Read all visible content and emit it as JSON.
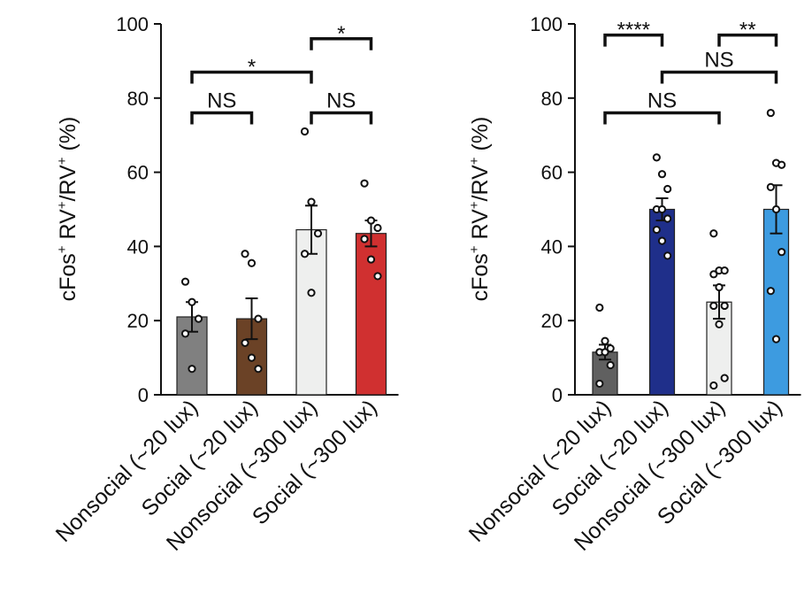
{
  "charts": [
    {
      "id": "left",
      "chart_data": {
        "type": "bar",
        "title": "",
        "xlabel": "",
        "ylabel": "cFos",
        "ylabel_parts": [
          "cFos",
          "+",
          " RV",
          "+",
          "/RV",
          "+",
          " (%)"
        ],
        "ylim": [
          0,
          100
        ],
        "yticks": [
          "0",
          "20",
          "40",
          "60",
          "80",
          "100"
        ],
        "categories": [
          "Nonsocial (~20 lux)",
          "Social (~20 lux)",
          "Nonsocial (~300 lux)",
          "Social (~300 lux)"
        ],
        "values": [
          21,
          20.5,
          44.5,
          43.5
        ],
        "errors": [
          4,
          5.5,
          6.5,
          3.5
        ],
        "colors": [
          "#808080",
          "#6b4226",
          "#eeefee",
          "#d03030"
        ],
        "points": [
          [
            30.5,
            25,
            20.5,
            16.5,
            7
          ],
          [
            38,
            35.5,
            20.5,
            14,
            10,
            7
          ],
          [
            71,
            52,
            43.5,
            38,
            27.5
          ],
          [
            57,
            47,
            45,
            42,
            36.5,
            32
          ]
        ],
        "comparisons": [
          {
            "from": 2,
            "to": 3,
            "y": 96,
            "label": "*"
          },
          {
            "from": 0,
            "to": 2,
            "y": 87,
            "label": "*"
          },
          {
            "from": 0,
            "to": 1,
            "y": 76,
            "label": "NS"
          },
          {
            "from": 2,
            "to": 3,
            "y": 76,
            "label": "NS"
          }
        ]
      }
    },
    {
      "id": "right",
      "chart_data": {
        "type": "bar",
        "title": "",
        "xlabel": "",
        "ylabel": "cFos",
        "ylabel_parts": [
          "cFos",
          "+",
          " RV",
          "+",
          "/RV",
          "+",
          " (%)"
        ],
        "ylim": [
          0,
          100
        ],
        "yticks": [
          "0",
          "20",
          "40",
          "60",
          "80",
          "100"
        ],
        "categories": [
          "Nonsocial (~20 lux)",
          "Social (~20 lux)",
          "Nonsocial (~300 lux)",
          "Social (~300 lux)"
        ],
        "values": [
          11.5,
          50,
          25,
          50
        ],
        "errors": [
          2,
          3,
          4.5,
          6.5
        ],
        "colors": [
          "#606060",
          "#1f2f8a",
          "#eeefee",
          "#3d9be0"
        ],
        "points": [
          [
            23.5,
            14.5,
            12.5,
            11.5,
            11.5,
            8,
            3
          ],
          [
            64,
            59.5,
            55.5,
            50,
            50,
            47.5,
            44.5,
            41.5,
            37.5
          ],
          [
            43.5,
            33.5,
            33.5,
            32.5,
            29,
            24,
            24,
            19,
            4.5,
            2.5
          ],
          [
            76,
            62.5,
            62,
            56,
            50,
            38.5,
            28,
            15
          ]
        ],
        "comparisons": [
          {
            "from": 0,
            "to": 1,
            "y": 97,
            "label": "****"
          },
          {
            "from": 2,
            "to": 3,
            "y": 97,
            "label": "**"
          },
          {
            "from": 1,
            "to": 3,
            "y": 87,
            "label": "NS"
          },
          {
            "from": 0,
            "to": 2,
            "y": 76,
            "label": "NS"
          }
        ]
      }
    }
  ]
}
